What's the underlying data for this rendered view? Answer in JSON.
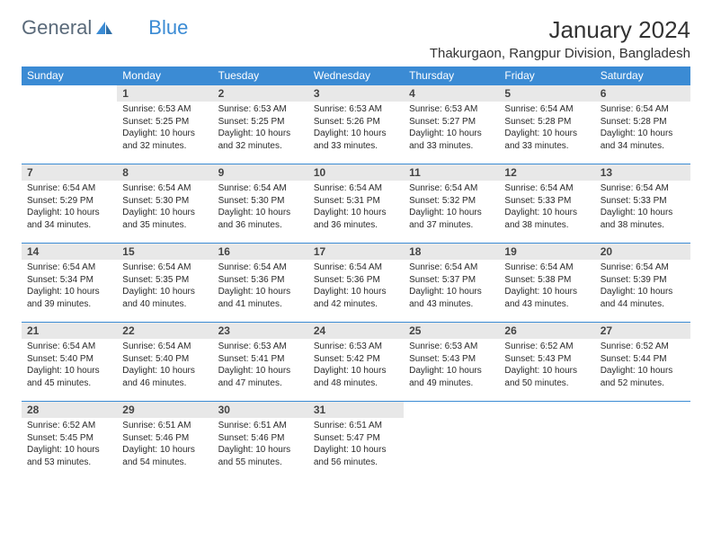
{
  "brand": {
    "part1": "General",
    "part2": "Blue"
  },
  "title": "January 2024",
  "location": "Thakurgaon, Rangpur Division, Bangladesh",
  "colors": {
    "header_bg": "#3b8bd4",
    "header_text": "#ffffff",
    "daynum_bg": "#e8e8e8",
    "cell_border": "#3b8bd4",
    "text": "#2a2a2a"
  },
  "dow": [
    "Sunday",
    "Monday",
    "Tuesday",
    "Wednesday",
    "Thursday",
    "Friday",
    "Saturday"
  ],
  "weeks": [
    [
      null,
      {
        "n": "1",
        "sr": "6:53 AM",
        "ss": "5:25 PM",
        "dl": "10 hours and 32 minutes."
      },
      {
        "n": "2",
        "sr": "6:53 AM",
        "ss": "5:25 PM",
        "dl": "10 hours and 32 minutes."
      },
      {
        "n": "3",
        "sr": "6:53 AM",
        "ss": "5:26 PM",
        "dl": "10 hours and 33 minutes."
      },
      {
        "n": "4",
        "sr": "6:53 AM",
        "ss": "5:27 PM",
        "dl": "10 hours and 33 minutes."
      },
      {
        "n": "5",
        "sr": "6:54 AM",
        "ss": "5:28 PM",
        "dl": "10 hours and 33 minutes."
      },
      {
        "n": "6",
        "sr": "6:54 AM",
        "ss": "5:28 PM",
        "dl": "10 hours and 34 minutes."
      }
    ],
    [
      {
        "n": "7",
        "sr": "6:54 AM",
        "ss": "5:29 PM",
        "dl": "10 hours and 34 minutes."
      },
      {
        "n": "8",
        "sr": "6:54 AM",
        "ss": "5:30 PM",
        "dl": "10 hours and 35 minutes."
      },
      {
        "n": "9",
        "sr": "6:54 AM",
        "ss": "5:30 PM",
        "dl": "10 hours and 36 minutes."
      },
      {
        "n": "10",
        "sr": "6:54 AM",
        "ss": "5:31 PM",
        "dl": "10 hours and 36 minutes."
      },
      {
        "n": "11",
        "sr": "6:54 AM",
        "ss": "5:32 PM",
        "dl": "10 hours and 37 minutes."
      },
      {
        "n": "12",
        "sr": "6:54 AM",
        "ss": "5:33 PM",
        "dl": "10 hours and 38 minutes."
      },
      {
        "n": "13",
        "sr": "6:54 AM",
        "ss": "5:33 PM",
        "dl": "10 hours and 38 minutes."
      }
    ],
    [
      {
        "n": "14",
        "sr": "6:54 AM",
        "ss": "5:34 PM",
        "dl": "10 hours and 39 minutes."
      },
      {
        "n": "15",
        "sr": "6:54 AM",
        "ss": "5:35 PM",
        "dl": "10 hours and 40 minutes."
      },
      {
        "n": "16",
        "sr": "6:54 AM",
        "ss": "5:36 PM",
        "dl": "10 hours and 41 minutes."
      },
      {
        "n": "17",
        "sr": "6:54 AM",
        "ss": "5:36 PM",
        "dl": "10 hours and 42 minutes."
      },
      {
        "n": "18",
        "sr": "6:54 AM",
        "ss": "5:37 PM",
        "dl": "10 hours and 43 minutes."
      },
      {
        "n": "19",
        "sr": "6:54 AM",
        "ss": "5:38 PM",
        "dl": "10 hours and 43 minutes."
      },
      {
        "n": "20",
        "sr": "6:54 AM",
        "ss": "5:39 PM",
        "dl": "10 hours and 44 minutes."
      }
    ],
    [
      {
        "n": "21",
        "sr": "6:54 AM",
        "ss": "5:40 PM",
        "dl": "10 hours and 45 minutes."
      },
      {
        "n": "22",
        "sr": "6:54 AM",
        "ss": "5:40 PM",
        "dl": "10 hours and 46 minutes."
      },
      {
        "n": "23",
        "sr": "6:53 AM",
        "ss": "5:41 PM",
        "dl": "10 hours and 47 minutes."
      },
      {
        "n": "24",
        "sr": "6:53 AM",
        "ss": "5:42 PM",
        "dl": "10 hours and 48 minutes."
      },
      {
        "n": "25",
        "sr": "6:53 AM",
        "ss": "5:43 PM",
        "dl": "10 hours and 49 minutes."
      },
      {
        "n": "26",
        "sr": "6:52 AM",
        "ss": "5:43 PM",
        "dl": "10 hours and 50 minutes."
      },
      {
        "n": "27",
        "sr": "6:52 AM",
        "ss": "5:44 PM",
        "dl": "10 hours and 52 minutes."
      }
    ],
    [
      {
        "n": "28",
        "sr": "6:52 AM",
        "ss": "5:45 PM",
        "dl": "10 hours and 53 minutes."
      },
      {
        "n": "29",
        "sr": "6:51 AM",
        "ss": "5:46 PM",
        "dl": "10 hours and 54 minutes."
      },
      {
        "n": "30",
        "sr": "6:51 AM",
        "ss": "5:46 PM",
        "dl": "10 hours and 55 minutes."
      },
      {
        "n": "31",
        "sr": "6:51 AM",
        "ss": "5:47 PM",
        "dl": "10 hours and 56 minutes."
      },
      null,
      null,
      null
    ]
  ],
  "labels": {
    "sunrise": "Sunrise:",
    "sunset": "Sunset:",
    "daylight": "Daylight:"
  }
}
